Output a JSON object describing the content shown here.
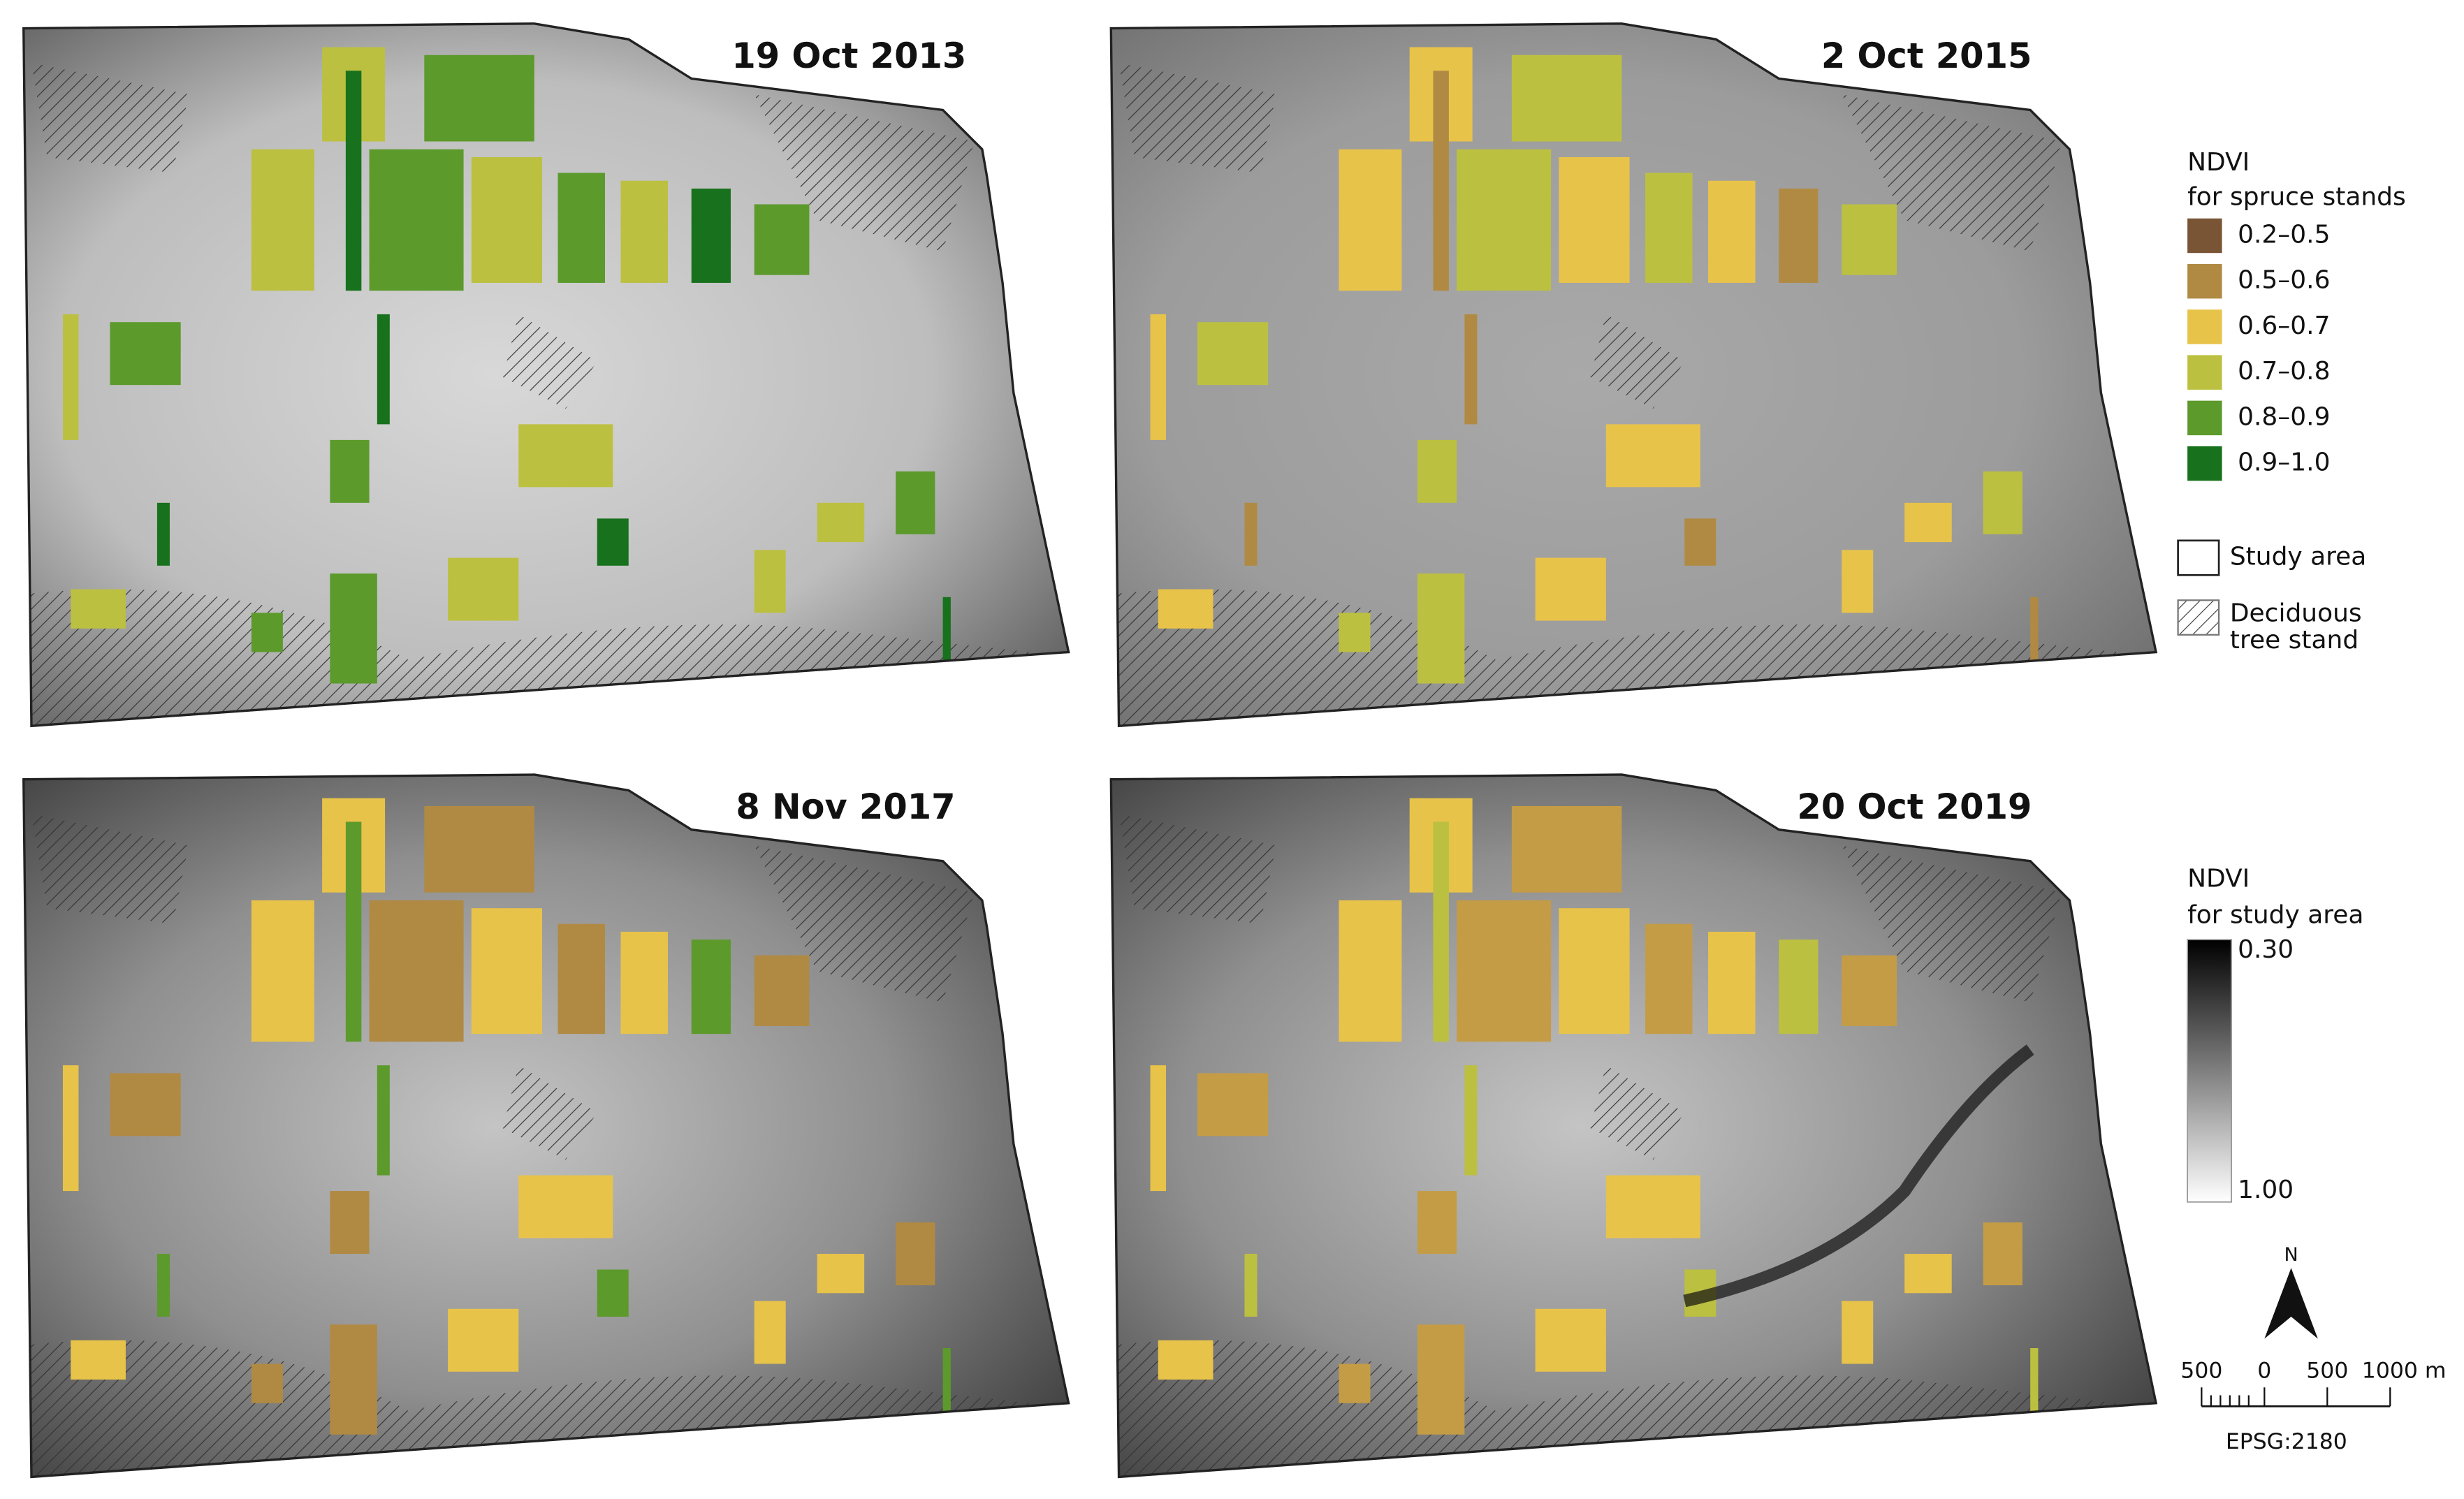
{
  "panels": [
    {
      "title": "19 Oct 2013"
    },
    {
      "title": "2 Oct 2015"
    },
    {
      "title": "8 Nov 2017"
    },
    {
      "title": "20 Oct 2019"
    }
  ],
  "legend": {
    "ndvi_spruce": {
      "title": [
        "NDVI",
        "for spruce stands"
      ],
      "items": [
        {
          "label": "0.2–0.5",
          "color": "#7a5535"
        },
        {
          "label": "0.5–0.6",
          "color": "#b08a43"
        },
        {
          "label": "0.6–0.7",
          "color": "#e8c34a"
        },
        {
          "label": "0.7–0.8",
          "color": "#bcc040"
        },
        {
          "label": "0.8–0.9",
          "color": "#5c9a2c"
        },
        {
          "label": "0.9–1.0",
          "color": "#18711c"
        }
      ]
    },
    "study_area": "Study area",
    "deciduous": [
      "Deciduous",
      "tree stand"
    ],
    "ndvi_study": {
      "title": [
        "NDVI",
        "for study area"
      ],
      "max": "0.30",
      "min": "1.00"
    }
  },
  "north": "N",
  "scale_bar": {
    "labels": [
      "500",
      "0",
      "500",
      "1000 m"
    ]
  },
  "crs": "EPSG:2180"
}
